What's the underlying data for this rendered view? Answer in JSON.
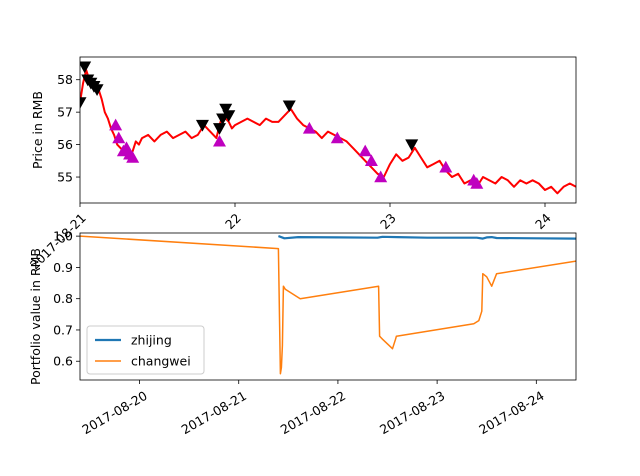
{
  "chart_data": [
    {
      "type": "line",
      "ylabel": "Price in RMB",
      "xlim": [
        21,
        24.2
      ],
      "ylim": [
        54.2,
        58.7
      ],
      "x_ticks": [
        {
          "value": 21,
          "label": "2017-08-21"
        },
        {
          "value": 22,
          "label": "22"
        },
        {
          "value": 23,
          "label": "23"
        },
        {
          "value": 24,
          "label": "24"
        }
      ],
      "y_ticks": [
        55,
        56,
        57,
        58
      ],
      "grid": false,
      "series": [
        {
          "color": "#ff0000",
          "x": [
            21.0,
            21.02,
            21.04,
            21.06,
            21.08,
            21.1,
            21.12,
            21.14,
            21.16,
            21.18,
            21.2,
            21.22,
            21.24,
            21.26,
            21.28,
            21.3,
            21.32,
            21.34,
            21.36,
            21.38,
            21.4,
            21.44,
            21.48,
            21.52,
            21.56,
            21.6,
            21.64,
            21.68,
            21.72,
            21.76,
            21.8,
            21.84,
            21.88,
            21.9,
            21.92,
            21.94,
            21.96,
            21.98,
            22.0,
            22.04,
            22.08,
            22.12,
            22.16,
            22.2,
            22.24,
            22.28,
            22.32,
            22.36,
            22.4,
            22.44,
            22.48,
            22.52,
            22.56,
            22.6,
            22.64,
            22.68,
            22.72,
            22.76,
            22.8,
            22.84,
            22.88,
            22.92,
            22.96,
            23.0,
            23.04,
            23.08,
            23.12,
            23.16,
            23.2,
            23.24,
            23.28,
            23.32,
            23.36,
            23.4,
            23.44,
            23.48,
            23.52,
            23.56,
            23.6,
            23.64,
            23.68,
            23.72,
            23.76,
            23.8,
            23.84,
            23.88,
            23.92,
            23.96,
            24.0,
            24.04,
            24.08,
            24.12,
            24.16,
            24.2
          ],
          "y": [
            57.3,
            57.9,
            58.3,
            58.0,
            57.8,
            57.9,
            57.7,
            57.4,
            57.0,
            56.8,
            56.5,
            56.3,
            56.0,
            55.9,
            55.8,
            55.9,
            55.7,
            55.8,
            56.1,
            56.0,
            56.2,
            56.3,
            56.1,
            56.3,
            56.4,
            56.2,
            56.3,
            56.4,
            56.2,
            56.3,
            56.6,
            56.4,
            56.2,
            56.6,
            56.9,
            56.8,
            56.7,
            56.5,
            56.6,
            56.7,
            56.8,
            56.7,
            56.6,
            56.8,
            56.7,
            56.7,
            56.9,
            57.1,
            56.8,
            56.6,
            56.5,
            56.4,
            56.2,
            56.4,
            56.3,
            56.2,
            56.1,
            55.9,
            55.7,
            55.5,
            55.3,
            55.1,
            55.0,
            55.4,
            55.7,
            55.5,
            55.6,
            55.9,
            55.6,
            55.3,
            55.4,
            55.5,
            55.2,
            55.0,
            55.1,
            54.8,
            54.9,
            54.7,
            55.0,
            54.9,
            54.8,
            55.0,
            54.9,
            54.7,
            54.9,
            54.8,
            54.9,
            54.8,
            54.6,
            54.7,
            54.5,
            54.7,
            54.8,
            54.7
          ]
        }
      ],
      "buy_markers": {
        "color": "#bf00bf",
        "shape": "triangle-up",
        "points": [
          [
            21.23,
            56.6
          ],
          [
            21.25,
            56.2
          ],
          [
            21.28,
            55.8
          ],
          [
            21.3,
            55.9
          ],
          [
            21.32,
            55.7
          ],
          [
            21.34,
            55.6
          ],
          [
            21.9,
            56.1
          ],
          [
            22.48,
            56.5
          ],
          [
            22.66,
            56.2
          ],
          [
            22.84,
            55.8
          ],
          [
            22.88,
            55.5
          ],
          [
            22.94,
            55.0
          ],
          [
            23.36,
            55.3
          ],
          [
            23.54,
            54.9
          ],
          [
            23.56,
            54.8
          ]
        ]
      },
      "sell_markers": {
        "color": "#000000",
        "shape": "triangle-down",
        "points": [
          [
            21.0,
            57.3
          ],
          [
            21.03,
            58.4
          ],
          [
            21.05,
            58.0
          ],
          [
            21.07,
            57.9
          ],
          [
            21.09,
            57.8
          ],
          [
            21.11,
            57.7
          ],
          [
            21.79,
            56.6
          ],
          [
            21.9,
            56.5
          ],
          [
            21.92,
            56.8
          ],
          [
            21.94,
            57.1
          ],
          [
            21.96,
            56.9
          ],
          [
            22.35,
            57.2
          ],
          [
            23.14,
            56.0
          ]
        ]
      }
    },
    {
      "type": "line",
      "ylabel": "Portfolio value in RMB",
      "xlim": [
        19.4,
        24.4
      ],
      "ylim": [
        0.54,
        1.01
      ],
      "x_ticks": [
        {
          "value": 20,
          "label": "2017-08-20"
        },
        {
          "value": 21,
          "label": "2017-08-21"
        },
        {
          "value": 22,
          "label": "2017-08-22"
        },
        {
          "value": 23,
          "label": "2017-08-23"
        },
        {
          "value": 24,
          "label": "2017-08-24"
        }
      ],
      "y_ticks": [
        {
          "value": 0.6,
          "label": "0.6"
        },
        {
          "value": 0.7,
          "label": "0.7"
        },
        {
          "value": 0.8,
          "label": "0.8"
        },
        {
          "value": 0.9,
          "label": "0.9"
        },
        {
          "value": 1.0,
          "label": "1.0"
        }
      ],
      "grid": false,
      "legend_position": "lower-left",
      "series": [
        {
          "name": "zhijing",
          "color": "#1f77b4",
          "x": [
            21.4,
            21.42,
            21.46,
            21.6,
            22.0,
            22.4,
            22.45,
            22.6,
            22.9,
            23.4,
            23.46,
            23.5,
            23.55,
            23.6,
            24.0,
            24.4
          ],
          "y": [
            1.0,
            0.998,
            0.993,
            0.997,
            0.996,
            0.995,
            0.998,
            0.997,
            0.995,
            0.995,
            0.992,
            0.996,
            0.997,
            0.994,
            0.993,
            0.992
          ],
          "line_width": 2.2
        },
        {
          "name": "changwei",
          "color": "#ff7f0e",
          "x": [
            19.4,
            21.4,
            21.42,
            21.43,
            21.44,
            21.45,
            21.47,
            21.62,
            22.41,
            22.42,
            22.45,
            22.55,
            22.58,
            22.59,
            23.37,
            23.42,
            23.45,
            23.46,
            23.5,
            23.55,
            23.6,
            24.4
          ],
          "y": [
            1.0,
            0.96,
            0.56,
            0.58,
            0.65,
            0.84,
            0.83,
            0.8,
            0.84,
            0.68,
            0.67,
            0.64,
            0.67,
            0.68,
            0.72,
            0.73,
            0.76,
            0.88,
            0.87,
            0.84,
            0.88,
            0.92
          ],
          "line_width": 1.5
        }
      ]
    }
  ]
}
